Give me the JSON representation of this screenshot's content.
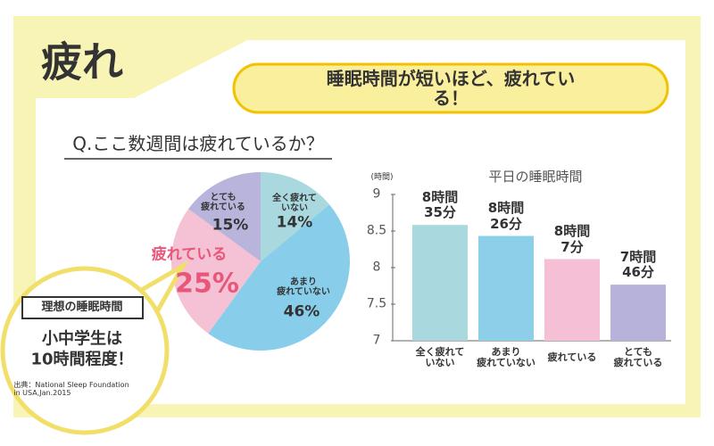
{
  "header": {
    "title": "疲れ",
    "headline": "睡眠時間が短いほど、疲れている！"
  },
  "chart_data": [
    {
      "type": "pie",
      "title": "Q.ここ数週間は疲れているか？",
      "categories": [
        "全く疲れて\nいない",
        "あまり\n疲れていない",
        "疲れている",
        "とても\n疲れている"
      ],
      "values": [
        14,
        46,
        25,
        15
      ],
      "value_labels": [
        "14%",
        "46%",
        "25%",
        "15%"
      ],
      "colors": [
        "#a9d9df",
        "#88cdea",
        "#f5c1d5",
        "#b9b4db"
      ]
    },
    {
      "type": "bar",
      "title": "平日の睡眠時間",
      "ylabel": "(時間)",
      "categories": [
        "全く疲れて\nいない",
        "あまり\n疲れていない",
        "疲れている",
        "とても\n疲れている"
      ],
      "values": [
        8.583,
        8.433,
        8.117,
        7.767
      ],
      "value_labels": [
        "8時間\n35分",
        "8時間\n26分",
        "8時間\n7分",
        "7時間\n46分"
      ],
      "colors": [
        "#a9d9df",
        "#8dcfe9",
        "#f5bfd6",
        "#b6b2da"
      ],
      "ylim": [
        7,
        9
      ],
      "yticks": [
        7,
        7.5,
        8,
        8.5,
        9
      ]
    }
  ],
  "callout": {
    "title": "理想の睡眠時間",
    "text": "小中学生は\n10時間程度！",
    "source": "出典：National Sleep Foundation\nin USA,Jan.2015"
  }
}
